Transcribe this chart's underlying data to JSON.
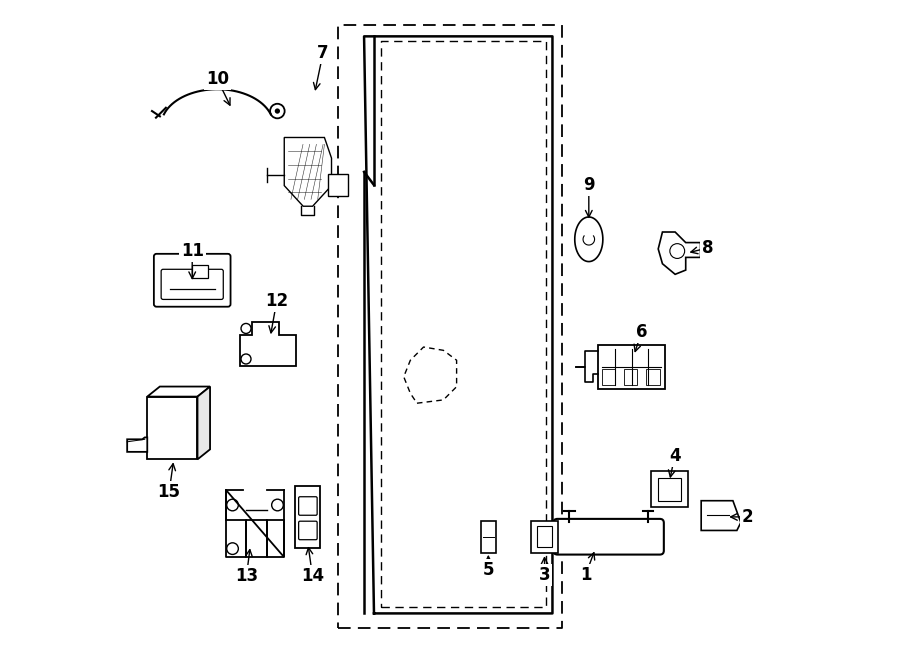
{
  "bg_color": "#ffffff",
  "line_color": "#000000",
  "figsize": [
    9.0,
    6.61
  ],
  "dpi": 100,
  "label_configs": [
    [
      10,
      0.148,
      0.88,
      0.17,
      0.835
    ],
    [
      7,
      0.308,
      0.92,
      0.295,
      0.858
    ],
    [
      11,
      0.11,
      0.62,
      0.11,
      0.572
    ],
    [
      12,
      0.238,
      0.545,
      0.228,
      0.49
    ],
    [
      15,
      0.075,
      0.255,
      0.082,
      0.305
    ],
    [
      13,
      0.192,
      0.128,
      0.198,
      0.175
    ],
    [
      14,
      0.292,
      0.128,
      0.285,
      0.178
    ],
    [
      9,
      0.71,
      0.72,
      0.71,
      0.665
    ],
    [
      8,
      0.89,
      0.625,
      0.858,
      0.617
    ],
    [
      6,
      0.79,
      0.498,
      0.778,
      0.462
    ],
    [
      4,
      0.84,
      0.31,
      0.832,
      0.272
    ],
    [
      2,
      0.95,
      0.218,
      0.918,
      0.218
    ],
    [
      5,
      0.558,
      0.138,
      0.558,
      0.165
    ],
    [
      3,
      0.643,
      0.13,
      0.643,
      0.163
    ],
    [
      1,
      0.705,
      0.13,
      0.72,
      0.17
    ]
  ]
}
